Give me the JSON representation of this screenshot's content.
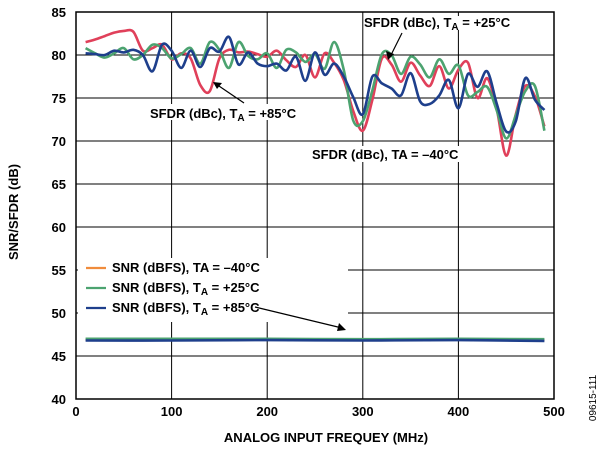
{
  "chart_data": {
    "type": "line",
    "xlabel": "ANALOG INPUT FREQUEY (MHz)",
    "ylabel": "SNR/SFDR (dB)",
    "xlim": [
      0,
      500
    ],
    "ylim": [
      40,
      85
    ],
    "x_ticks": [
      "0",
      "100",
      "200",
      "300",
      "400",
      "500"
    ],
    "y_ticks": [
      "40",
      "45",
      "50",
      "55",
      "60",
      "65",
      "70",
      "75",
      "80",
      "85"
    ],
    "grid": true,
    "figure_id": "09615-111",
    "annotations": [
      {
        "text": "SFDR (dBc), T",
        "sub": "A",
        "rest": " = +25°C"
      },
      {
        "text": "SFDR (dBc), T",
        "sub": "A",
        "rest": " = +85°C"
      },
      {
        "text": "SFDR (dBc), T",
        "sub": "",
        "rest": "A = –40°C"
      }
    ],
    "legend": [
      {
        "text": "SNR (dBFS), T",
        "sub": "",
        "rest": "A = –40°C",
        "color": "#F08C3C"
      },
      {
        "text": "SNR (dBFS), T",
        "sub": "A",
        "rest": " = +25°C",
        "color": "#4CA370"
      },
      {
        "text": "SNR (dBFS), T",
        "sub": "A",
        "rest": " = +85°C",
        "color": "#1E3F8C"
      }
    ],
    "series": [
      {
        "color": "#E0405A",
        "x": [
          10,
          20,
          30,
          40,
          50,
          60,
          70,
          80,
          90,
          100,
          110,
          120,
          130,
          140,
          150,
          160,
          170,
          180,
          190,
          200,
          210,
          220,
          230,
          240,
          250,
          260,
          270,
          280,
          290,
          300,
          310,
          320,
          330,
          340,
          350,
          360,
          370,
          380,
          390,
          400,
          410,
          420,
          430,
          440,
          450,
          460,
          470,
          480,
          490
        ],
        "y": [
          81.5,
          81.8,
          82.2,
          82.6,
          82.8,
          82.7,
          80.5,
          80.8,
          81.2,
          79.5,
          80.2,
          79.6,
          76.5,
          75.8,
          79.6,
          80.6,
          80.3,
          80.4,
          80.1,
          79.8,
          80.5,
          79.4,
          78.6,
          80.0,
          77.4,
          80.2,
          79.1,
          77.1,
          73.5,
          71.2,
          74.8,
          79.6,
          78.9,
          76.9,
          79.1,
          77.6,
          76.4,
          78.7,
          76.1,
          78.3,
          79.1,
          75.0,
          77.3,
          73.8,
          68.3,
          73.1,
          76.4,
          75.2,
          71.7
        ]
      },
      {
        "color": "#4CA370",
        "x": [
          10,
          20,
          30,
          40,
          50,
          60,
          70,
          80,
          90,
          100,
          110,
          120,
          130,
          140,
          150,
          160,
          170,
          180,
          190,
          200,
          210,
          220,
          230,
          240,
          250,
          260,
          270,
          280,
          290,
          300,
          310,
          320,
          330,
          340,
          350,
          360,
          370,
          380,
          390,
          400,
          410,
          420,
          430,
          440,
          450,
          460,
          470,
          480,
          490
        ],
        "y": [
          80.8,
          80.2,
          79.7,
          80.2,
          80.8,
          79.5,
          80.0,
          81.2,
          80.8,
          79.6,
          80.1,
          80.8,
          79.0,
          81.5,
          80.6,
          78.5,
          81.5,
          79.9,
          79.5,
          80.2,
          78.5,
          80.6,
          80.3,
          79.2,
          80.1,
          78.4,
          81.5,
          78.3,
          72.4,
          72.3,
          75.9,
          80.1,
          80.0,
          77.8,
          79.8,
          78.9,
          77.4,
          79.5,
          77.8,
          78.8,
          75.3,
          75.7,
          76.3,
          73.6,
          70.3,
          73.0,
          75.8,
          76.4,
          71.2
        ]
      },
      {
        "color": "#1E3F8C",
        "x": [
          10,
          20,
          30,
          40,
          50,
          60,
          70,
          80,
          90,
          100,
          110,
          120,
          130,
          140,
          150,
          160,
          170,
          180,
          190,
          200,
          210,
          220,
          230,
          240,
          250,
          260,
          270,
          280,
          290,
          300,
          310,
          320,
          330,
          340,
          350,
          360,
          370,
          380,
          390,
          400,
          410,
          420,
          430,
          440,
          450,
          460,
          470,
          480,
          490
        ],
        "y": [
          80.2,
          80.1,
          80.0,
          80.5,
          80.3,
          80.6,
          80.0,
          78.1,
          81.2,
          80.5,
          78.5,
          80.5,
          78.6,
          80.8,
          80.4,
          82.1,
          78.9,
          80.3,
          79.0,
          78.7,
          79.0,
          78.2,
          79.8,
          77.0,
          80.3,
          77.7,
          79.0,
          77.5,
          75.1,
          73.1,
          77.5,
          76.7,
          76.1,
          75.3,
          77.9,
          74.6,
          74.3,
          75.3,
          77.1,
          73.8,
          77.8,
          76.3,
          78.1,
          74.4,
          71.1,
          72.3,
          77.3,
          74.8,
          73.6
        ]
      },
      {
        "color": "#F08C3C",
        "x": [
          10,
          100,
          200,
          300,
          400,
          490
        ],
        "y": [
          46.9,
          46.9,
          46.9,
          46.9,
          46.9,
          46.85
        ]
      },
      {
        "color": "#4CA370",
        "x": [
          10,
          100,
          200,
          300,
          400,
          490
        ],
        "y": [
          47.0,
          47.0,
          47.0,
          46.95,
          47.0,
          46.95
        ]
      },
      {
        "color": "#1E3F8C",
        "x": [
          10,
          100,
          200,
          300,
          400,
          490
        ],
        "y": [
          46.8,
          46.8,
          46.85,
          46.8,
          46.85,
          46.75
        ]
      }
    ]
  }
}
